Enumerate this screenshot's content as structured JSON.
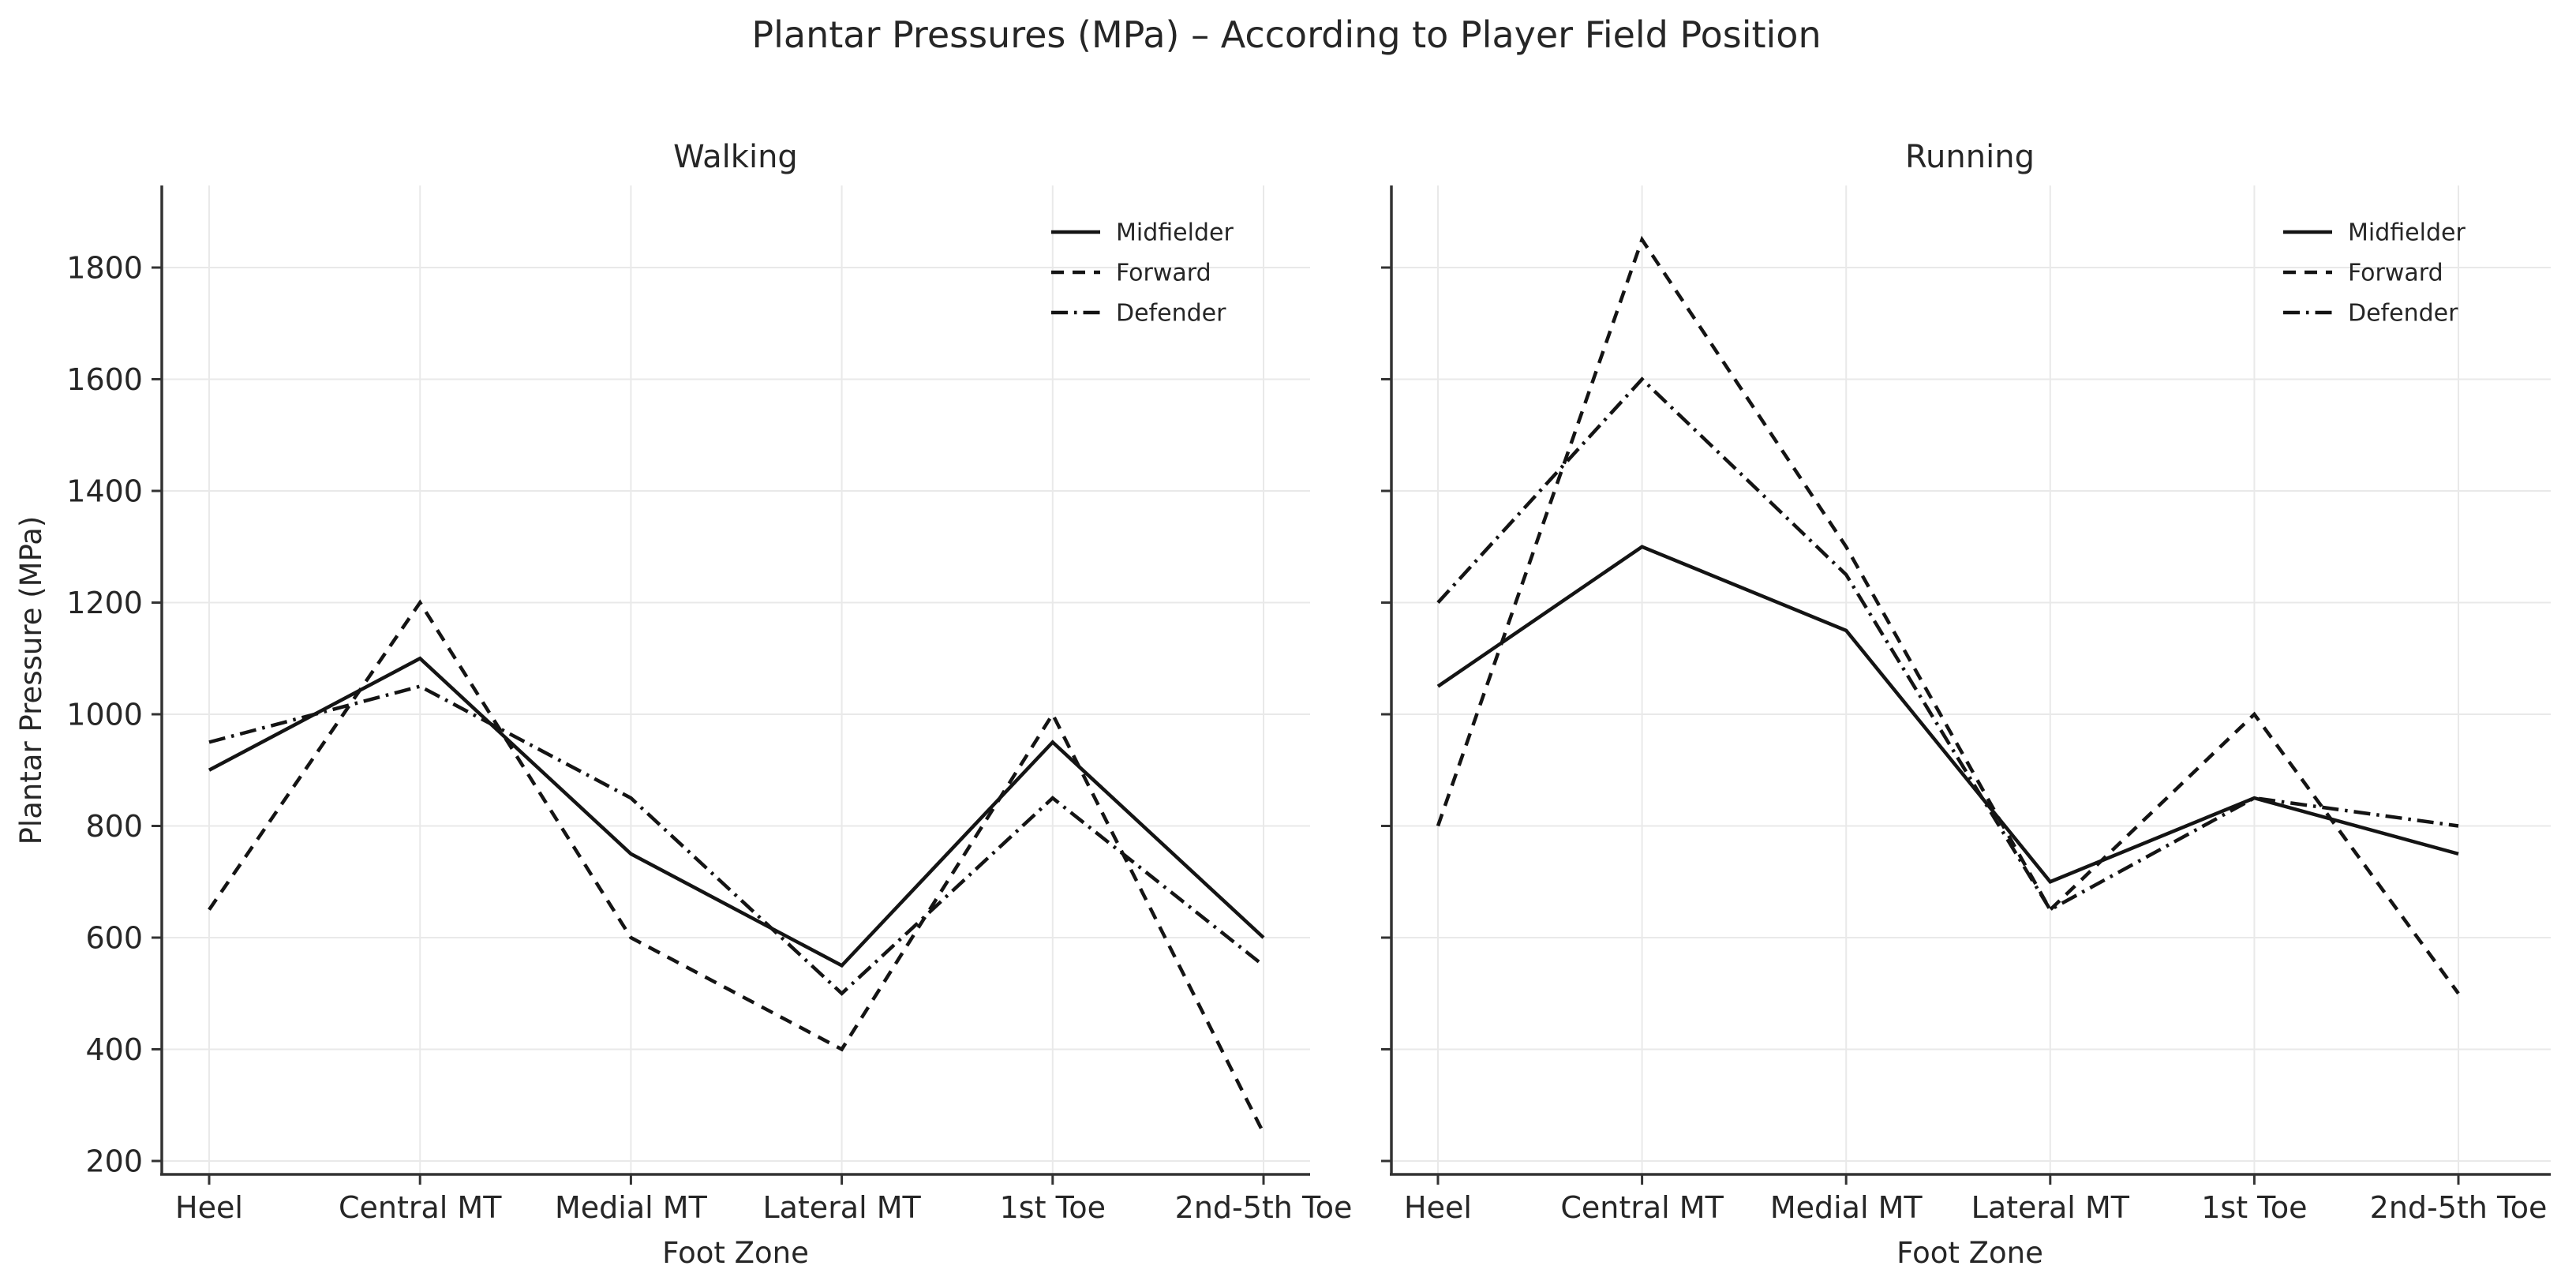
{
  "suptitle": "Plantar Pressures (MPa) – According to Player Field Position",
  "colors": {
    "line": "#141414",
    "grid": "#e9e9e9",
    "spine": "#333333",
    "tick": "#333333",
    "text": "#262626",
    "background": "#ffffff"
  },
  "legend": {
    "entries": [
      "Midfielder",
      "Forward",
      "Defender"
    ]
  },
  "chart_data": [
    {
      "type": "line",
      "title": "Walking",
      "xlabel": "Foot Zone",
      "ylabel": "Plantar Pressure (MPa)",
      "categories": [
        "Heel",
        "Central MT",
        "Medial MT",
        "Lateral MT",
        "1st Toe",
        "2nd-5th Toe"
      ],
      "yticks": [
        200,
        400,
        600,
        800,
        1000,
        1200,
        1400,
        1600,
        1800
      ],
      "ylim": [
        200,
        1800
      ],
      "grid": true,
      "legend_position": "upper right",
      "series": [
        {
          "name": "Midfielder",
          "style": "solid",
          "values": [
            900,
            1100,
            750,
            550,
            950,
            600
          ]
        },
        {
          "name": "Forward",
          "style": "dashed",
          "values": [
            650,
            1200,
            600,
            400,
            1000,
            250
          ]
        },
        {
          "name": "Defender",
          "style": "dashdot",
          "values": [
            950,
            1050,
            850,
            500,
            850,
            550
          ]
        }
      ]
    },
    {
      "type": "line",
      "title": "Running",
      "xlabel": "Foot Zone",
      "ylabel": "",
      "categories": [
        "Heel",
        "Central MT",
        "Medial MT",
        "Lateral MT",
        "1st Toe",
        "2nd-5th Toe"
      ],
      "yticks": [
        200,
        400,
        600,
        800,
        1000,
        1200,
        1400,
        1600,
        1800
      ],
      "ylim": [
        200,
        1800
      ],
      "grid": true,
      "legend_position": "upper right",
      "series": [
        {
          "name": "Midfielder",
          "style": "solid",
          "values": [
            1050,
            1300,
            1150,
            700,
            850,
            750
          ]
        },
        {
          "name": "Forward",
          "style": "dashed",
          "values": [
            800,
            1850,
            1300,
            650,
            1000,
            500
          ]
        },
        {
          "name": "Defender",
          "style": "dashdot",
          "values": [
            1200,
            1600,
            1250,
            650,
            850,
            800
          ]
        }
      ]
    }
  ]
}
